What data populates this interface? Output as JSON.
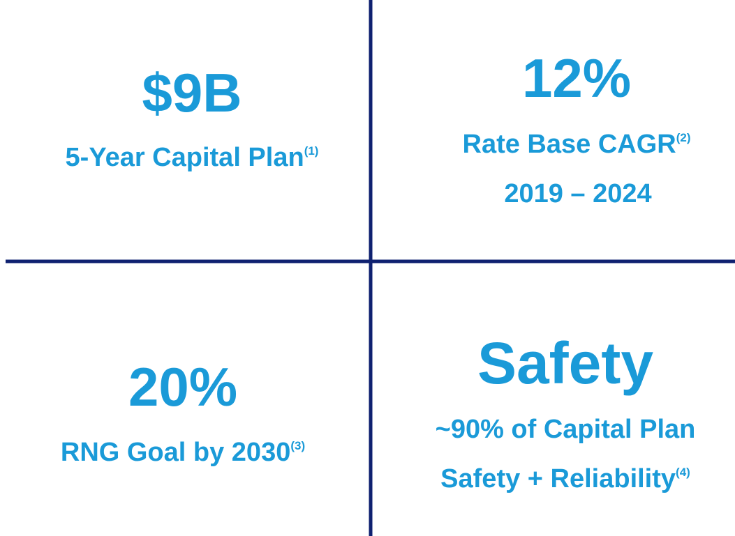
{
  "quadrants": [
    {
      "headline": "$9B",
      "lines": [
        {
          "text": "5-Year Capital Plan",
          "note": "(1)"
        }
      ]
    },
    {
      "headline": "12%",
      "lines": [
        {
          "text": "Rate Base CAGR",
          "note": "(2)"
        },
        {
          "text": "2019 – 2024"
        }
      ]
    },
    {
      "headline": "20%",
      "lines": [
        {
          "text": "RNG Goal by 2030",
          "note": "(3)"
        }
      ]
    },
    {
      "headline": "Safety",
      "lines": [
        {
          "text": "~90% of Capital Plan"
        },
        {
          "text": "Safety + Reliability",
          "note": "(4)"
        }
      ]
    }
  ]
}
